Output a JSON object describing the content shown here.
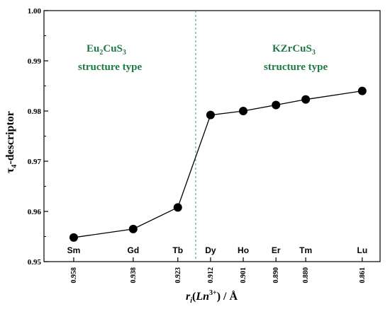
{
  "chart_data": {
    "type": "line",
    "x": [
      0.958,
      0.938,
      0.923,
      0.912,
      0.901,
      0.89,
      0.88,
      0.861
    ],
    "x_tick_labels": [
      "0.958",
      "0.938",
      "0.923",
      "0.912",
      "0.901",
      "0.890",
      "0.880",
      "0.861"
    ],
    "element_labels": [
      "Sm",
      "Gd",
      "Tb",
      "Dy",
      "Ho",
      "Er",
      "Tm",
      "Lu"
    ],
    "series": [
      {
        "values": [
          0.9548,
          0.9565,
          0.9608,
          0.9792,
          0.98,
          0.9812,
          0.9823,
          0.984
        ]
      }
    ],
    "xlim": [
      0.968,
      0.855
    ],
    "ylim": [
      0.95,
      1.0
    ],
    "y_ticks": [
      "0.95",
      "0.96",
      "0.97",
      "0.98",
      "0.99",
      "1.00"
    ],
    "ylabel": {
      "main": "τ",
      "sub": "4",
      "rest": "-descriptor"
    },
    "xlabel": {
      "r": "r",
      "r_sub": "i",
      "paren_open": "(",
      "ln": "Ln",
      "ln_sup": "3+",
      "tail": ") / Å"
    },
    "boundary_x": 0.917,
    "annotations": {
      "left": {
        "line1_a": "Eu",
        "line1_sub1": "2",
        "line1_b": "CuS",
        "line1_sub2": "3",
        "line2": "structure type"
      },
      "right": {
        "line1_a": "KZrCuS",
        "line1_sub": "3",
        "line2": "structure type"
      }
    },
    "colors": {
      "annotation": "#1e7a44",
      "boundary": "#2f9a86",
      "line": "#000000"
    },
    "grid": false
  }
}
